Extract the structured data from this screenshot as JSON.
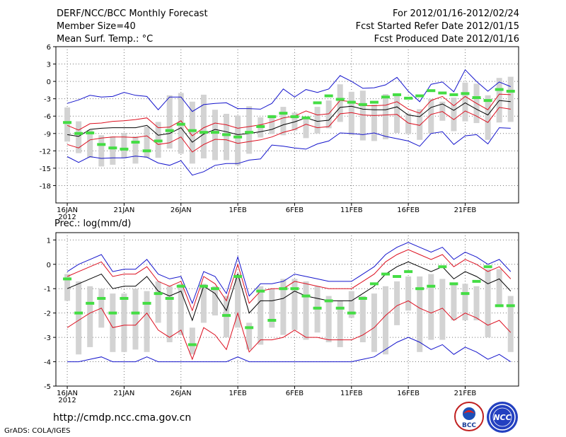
{
  "header": {
    "title": "DERF/NCC/BCC Monthly Forecast",
    "member": "Member Size=40",
    "variable": "Mean Surf. Temp.: °C",
    "period": "For 2012/01/16-2012/02/24",
    "started": "Fcst Started Refer Date 2012/01/15",
    "produced": "Fcst Produced Date 2012/01/16"
  },
  "footer": {
    "url": "http://cmdp.ncc.cma.gov.cn",
    "credit": "GrADS: COLA/IGES",
    "logo_bcc_label": "BCC",
    "logo_ncc_label": "NCC"
  },
  "colors": {
    "box": "#d3d3d3",
    "mean": "#000000",
    "spread": "#dd1020",
    "extreme": "#1414cc",
    "obs": "#44dd44",
    "grid": "#777777"
  },
  "chart_data": [
    {
      "type": "line",
      "title": "Mean Surf. Temp.: °C",
      "ylabel": "°C",
      "ylim": [
        -21,
        6
      ],
      "yticks": [
        6,
        3,
        0,
        -3,
        -6,
        -9,
        -12,
        -15,
        -18
      ],
      "xticks": [
        {
          "day": 0,
          "label": "16JAN"
        },
        {
          "day": 5,
          "label": "21JAN"
        },
        {
          "day": 10,
          "label": "26JAN"
        },
        {
          "day": 15,
          "label": "1FEB"
        },
        {
          "day": 20,
          "label": "6FEB"
        },
        {
          "day": 25,
          "label": "11FEB"
        },
        {
          "day": 30,
          "label": "16FEB"
        },
        {
          "day": 35,
          "label": "21FEB"
        }
      ],
      "x_year_label": "2012",
      "grid": true,
      "series": [
        {
          "name": "ensemble mean",
          "values": [
            -9.2,
            -9.5,
            -8.3,
            -8.1,
            -8.0,
            -8.0,
            -8.0,
            -7.6,
            -9.3,
            -9.0,
            -8.0,
            -10.5,
            -9.1,
            -8.3,
            -8.7,
            -9.2,
            -9.0,
            -8.7,
            -8.3,
            -7.5,
            -7.0,
            -6.3,
            -6.9,
            -6.7,
            -4.5,
            -4.3,
            -4.8,
            -4.9,
            -4.9,
            -4.4,
            -5.8,
            -6.1,
            -4.5,
            -3.9,
            -5.0,
            -3.7,
            -4.8,
            -5.8,
            -3.3,
            -3.5
          ]
        },
        {
          "name": "mean + 1 std",
          "values": [
            -7.6,
            -8.4,
            -7.3,
            -7.2,
            -6.9,
            -6.8,
            -6.6,
            -6.3,
            -8.0,
            -7.9,
            -6.8,
            -9.4,
            -8.0,
            -7.2,
            -7.5,
            -8.1,
            -7.8,
            -7.5,
            -7.0,
            -6.3,
            -6.0,
            -5.1,
            -5.8,
            -5.6,
            -3.3,
            -3.5,
            -4.2,
            -4.2,
            -4.1,
            -3.5,
            -4.8,
            -5.5,
            -3.3,
            -2.6,
            -4.2,
            -2.6,
            -3.8,
            -4.9,
            -2.2,
            -2.3
          ]
        },
        {
          "name": "mean - 1 std",
          "values": [
            -10.9,
            -11.5,
            -10.1,
            -9.8,
            -9.6,
            -9.6,
            -9.7,
            -9.4,
            -10.9,
            -10.6,
            -9.6,
            -12.2,
            -10.9,
            -10.0,
            -10.1,
            -10.7,
            -10.4,
            -10.1,
            -9.6,
            -8.8,
            -8.3,
            -7.4,
            -8.0,
            -7.8,
            -5.6,
            -5.4,
            -5.8,
            -5.9,
            -5.8,
            -5.7,
            -7.2,
            -7.6,
            -5.7,
            -5.2,
            -6.6,
            -5.1,
            -6.0,
            -7.1,
            -4.5,
            -4.8
          ]
        },
        {
          "name": "ensemble max",
          "values": [
            -3.8,
            -3.2,
            -2.4,
            -2.7,
            -2.6,
            -1.9,
            -2.4,
            -2.6,
            -4.9,
            -2.7,
            -2.7,
            -5.2,
            -4.0,
            -3.8,
            -3.7,
            -4.7,
            -4.7,
            -4.8,
            -3.8,
            -1.3,
            -2.7,
            -1.4,
            -1.9,
            -1.3,
            1.0,
            0.0,
            -1.2,
            -1.1,
            -0.6,
            0.7,
            -1.7,
            -3.5,
            -0.5,
            -0.1,
            -1.8,
            2.0,
            0.0,
            -1.7,
            -0.1,
            -0.9
          ]
        },
        {
          "name": "ensemble min",
          "values": [
            -13.0,
            -14.0,
            -13.0,
            -13.3,
            -13.2,
            -13.2,
            -12.9,
            -13.1,
            -14.1,
            -14.5,
            -13.7,
            -16.2,
            -15.6,
            -14.5,
            -14.2,
            -14.2,
            -13.6,
            -13.4,
            -11.0,
            -11.2,
            -11.5,
            -11.7,
            -10.8,
            -10.3,
            -8.9,
            -9.0,
            -9.2,
            -8.9,
            -9.5,
            -9.9,
            -10.3,
            -11.2,
            -9.0,
            -8.7,
            -10.9,
            -9.4,
            -9.2,
            -10.8,
            -8.0,
            -8.1
          ]
        },
        {
          "name": "box top",
          "values": [
            -4.5,
            -6.9,
            -8.4,
            -9.3,
            -9.5,
            -8.9,
            -9.5,
            -7.8,
            -7.0,
            -2.4,
            -2.0,
            -3.5,
            -2.3,
            -4.9,
            -5.6,
            -5.9,
            -4.3,
            -6.2,
            -5.8,
            -4.4,
            -5.4,
            -6.4,
            -4.4,
            -3.3,
            -0.5,
            -1.8,
            -1.6,
            -4.0,
            -2.2,
            -2.5,
            -5.5,
            -4.8,
            -3.0,
            -3.5,
            -2.8,
            -0.2,
            -0.4,
            -2.4,
            0.6,
            0.8
          ]
        },
        {
          "name": "box bottom",
          "values": [
            -10.4,
            -12.4,
            -13.2,
            -14.7,
            -14.4,
            -13.3,
            -14.2,
            -13.2,
            -13.2,
            -11.6,
            -12.5,
            -14.2,
            -13.3,
            -13.6,
            -13.6,
            -14.5,
            -12.5,
            -9.7,
            -9.1,
            -9.3,
            -8.5,
            -9.8,
            -9.0,
            -8.1,
            -7.0,
            -9.3,
            -10.2,
            -10.3,
            -10.0,
            -8.9,
            -9.1,
            -10.1,
            -9.0,
            -6.8,
            -8.6,
            -6.9,
            -7.2,
            -10.1,
            -7.1,
            -7.0
          ]
        },
        {
          "name": "observed",
          "values": [
            -7.1,
            -9.0,
            -8.9,
            -10.9,
            -11.5,
            -11.7,
            -10.5,
            -12.0,
            -10.3,
            -8.5,
            -7.4,
            -8.5,
            -8.8,
            -8.8,
            -9.2,
            -9.6,
            -8.8,
            -7.8,
            -6.1,
            -5.5,
            -6.1,
            -6.3,
            -3.7,
            -2.5,
            -3.1,
            -3.6,
            -4.0,
            -3.6,
            -2.7,
            -2.3,
            -2.9,
            -2.5,
            -1.6,
            -2.0,
            -2.3,
            -2.1,
            -2.8,
            -3.3,
            -1.4,
            -1.7
          ]
        }
      ]
    },
    {
      "type": "line",
      "title": "Prec.: log(mm/d)",
      "ylabel": "log(mm/d)",
      "ylim": [
        -5,
        1.3
      ],
      "yticks": [
        1,
        0,
        -1,
        -2,
        -3,
        -4,
        -5
      ],
      "xticks": [
        {
          "day": 0,
          "label": "16JAN"
        },
        {
          "day": 5,
          "label": "21JAN"
        },
        {
          "day": 10,
          "label": "26JAN"
        },
        {
          "day": 15,
          "label": "1FEB"
        },
        {
          "day": 20,
          "label": "6FEB"
        },
        {
          "day": 25,
          "label": "11FEB"
        },
        {
          "day": 30,
          "label": "16FEB"
        },
        {
          "day": 35,
          "label": "21FEB"
        }
      ],
      "x_year_label": "2012",
      "grid": true,
      "series": [
        {
          "name": "ensemble mean",
          "values": [
            -1.0,
            -0.8,
            -0.6,
            -0.4,
            -1.0,
            -0.9,
            -0.9,
            -0.5,
            -1.1,
            -1.3,
            -1.1,
            -2.3,
            -0.9,
            -1.2,
            -1.9,
            -0.4,
            -2.0,
            -1.5,
            -1.5,
            -1.4,
            -1.1,
            -1.3,
            -1.4,
            -1.5,
            -1.5,
            -1.5,
            -1.2,
            -0.9,
            -0.4,
            -0.1,
            0.1,
            -0.1,
            -0.3,
            -0.1,
            -0.6,
            -0.3,
            -0.5,
            -0.8,
            -0.6,
            -1.1
          ]
        },
        {
          "name": "mean + 1 std",
          "values": [
            -0.5,
            -0.3,
            -0.1,
            0.1,
            -0.5,
            -0.4,
            -0.4,
            -0.1,
            -0.7,
            -0.9,
            -0.7,
            -1.9,
            -0.5,
            -0.8,
            -1.5,
            0.0,
            -1.6,
            -1.1,
            -1.0,
            -1.0,
            -0.7,
            -0.8,
            -0.9,
            -1.0,
            -1.0,
            -1.0,
            -0.7,
            -0.4,
            0.1,
            0.4,
            0.6,
            0.4,
            0.2,
            0.4,
            -0.1,
            0.2,
            0.0,
            -0.3,
            -0.1,
            -0.6
          ]
        },
        {
          "name": "mean - 1 std",
          "values": [
            -2.6,
            -2.3,
            -2.0,
            -1.8,
            -2.6,
            -2.5,
            -2.5,
            -2.0,
            -2.7,
            -3.0,
            -2.7,
            -3.9,
            -2.6,
            -2.9,
            -3.5,
            -2.0,
            -3.6,
            -3.1,
            -3.1,
            -3.0,
            -2.7,
            -3.0,
            -3.0,
            -3.1,
            -3.1,
            -3.1,
            -2.9,
            -2.6,
            -2.1,
            -1.7,
            -1.5,
            -1.8,
            -2.0,
            -1.8,
            -2.3,
            -2.0,
            -2.2,
            -2.5,
            -2.3,
            -2.8
          ]
        },
        {
          "name": "ensemble max",
          "values": [
            -0.3,
            0.0,
            0.2,
            0.4,
            -0.3,
            -0.2,
            -0.2,
            0.2,
            -0.4,
            -0.6,
            -0.5,
            -1.6,
            -0.3,
            -0.5,
            -1.2,
            0.3,
            -1.3,
            -0.8,
            -0.8,
            -0.7,
            -0.4,
            -0.5,
            -0.6,
            -0.7,
            -0.7,
            -0.7,
            -0.4,
            -0.1,
            0.4,
            0.7,
            0.9,
            0.7,
            0.5,
            0.7,
            0.2,
            0.5,
            0.3,
            0.0,
            0.2,
            -0.3
          ]
        },
        {
          "name": "ensemble min",
          "values": [
            -4.0,
            -4.0,
            -3.9,
            -3.8,
            -4.0,
            -4.0,
            -4.0,
            -3.8,
            -4.0,
            -4.0,
            -4.0,
            -4.0,
            -4.0,
            -4.0,
            -4.0,
            -3.8,
            -4.0,
            -4.0,
            -4.0,
            -4.0,
            -4.0,
            -4.0,
            -4.0,
            -4.0,
            -4.0,
            -4.0,
            -3.9,
            -3.8,
            -3.5,
            -3.2,
            -3.0,
            -3.2,
            -3.5,
            -3.3,
            -3.7,
            -3.4,
            -3.6,
            -3.9,
            -3.7,
            -4.0
          ]
        },
        {
          "name": "box top",
          "values": [
            -0.4,
            -0.7,
            -0.9,
            -1.0,
            -1.2,
            -1.2,
            -1.0,
            -1.1,
            -0.7,
            -0.9,
            -0.8,
            -2.6,
            -0.8,
            -0.9,
            -1.3,
            -0.4,
            -2.4,
            -0.9,
            -1.0,
            -0.6,
            -0.6,
            -0.7,
            -0.9,
            -1.3,
            -1.5,
            -1.1,
            -1.3,
            -1.2,
            -0.9,
            -0.7,
            -0.5,
            -0.5,
            -0.4,
            -0.6,
            -0.8,
            -0.8,
            -0.9,
            -0.2,
            -0.2,
            -1.3
          ]
        },
        {
          "name": "box bottom",
          "values": [
            -1.5,
            -3.7,
            -3.4,
            -2.6,
            -3.6,
            -3.6,
            -3.5,
            -3.6,
            -2.4,
            -3.2,
            -2.9,
            -3.7,
            -2.4,
            -2.1,
            -3.0,
            -2.6,
            -3.5,
            -3.3,
            -2.6,
            -2.9,
            -2.7,
            -3.1,
            -2.8,
            -3.2,
            -3.4,
            -2.2,
            -3.2,
            -3.6,
            -3.7,
            -2.5,
            -1.9,
            -3.6,
            -3.1,
            -3.1,
            -2.3,
            -2.3,
            -2.3,
            -3.0,
            -1.7,
            -3.6
          ]
        },
        {
          "name": "observed",
          "values": [
            -0.6,
            -2.0,
            -1.6,
            -1.4,
            -2.0,
            -1.4,
            -2.0,
            -1.6,
            -1.2,
            -1.4,
            -0.9,
            -3.3,
            -0.9,
            -1.0,
            -2.1,
            -0.5,
            -2.6,
            -1.1,
            -2.3,
            -1.0,
            -1.0,
            -1.3,
            -1.8,
            -1.5,
            -1.8,
            -2.0,
            -1.4,
            -0.8,
            -0.4,
            -0.5,
            -0.3,
            -1.0,
            -0.9,
            -0.1,
            -0.8,
            -1.2,
            -0.7,
            -0.1,
            -1.7,
            -1.7
          ]
        }
      ]
    }
  ]
}
